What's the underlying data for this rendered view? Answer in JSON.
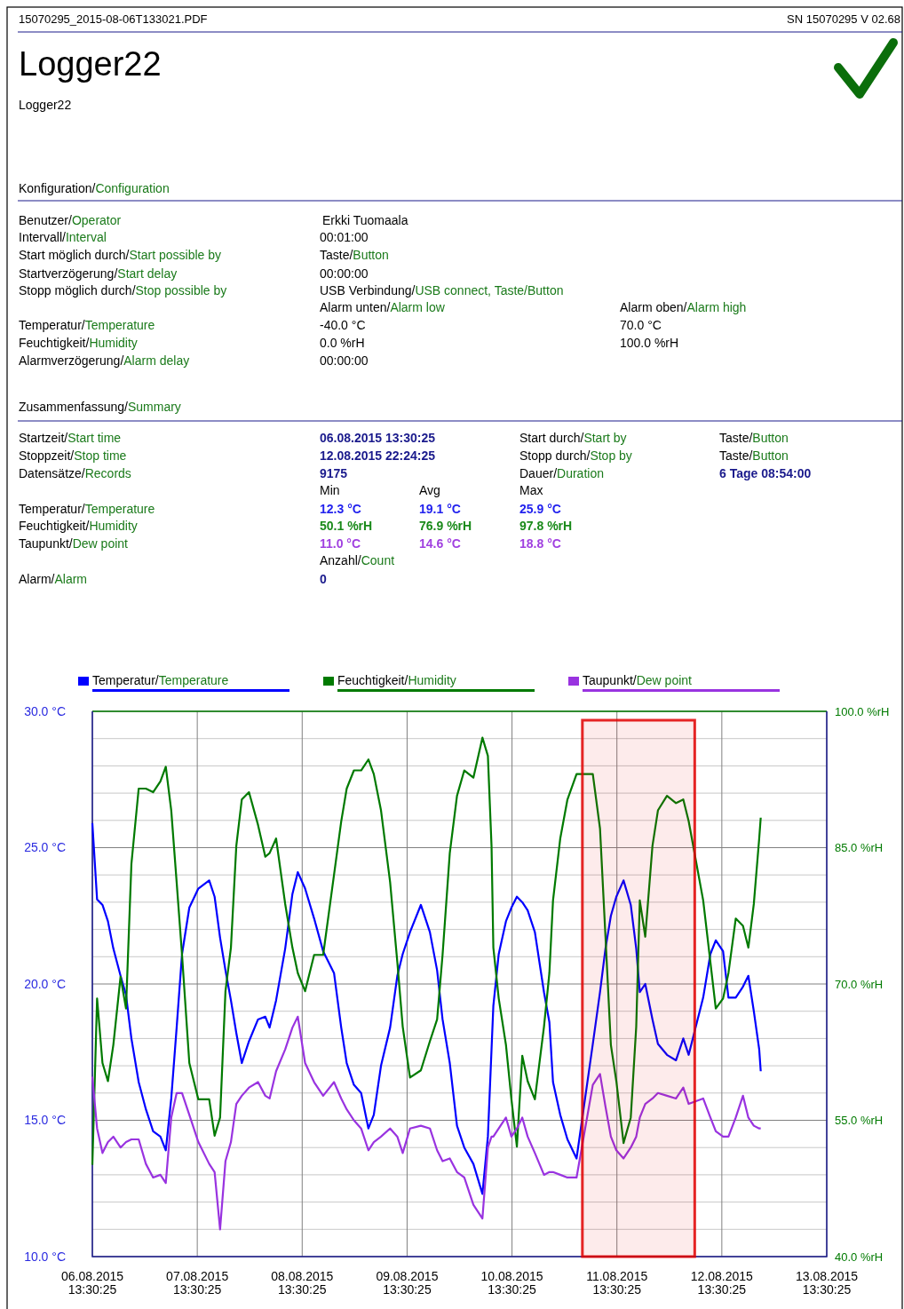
{
  "chart_data": [
    {
      "type": "other",
      "title": "Logger22",
      "subtitle": "Logger22",
      "annotations": [
        "15070295_2015-08-06T133021.PDF",
        "SN 15070295  V 02.68",
        "Konfiguration/Configuration",
        "Benutzer/Operator",
        "Erkki Tuomaala",
        "Intervall/Interval",
        "00:01:00",
        "Start möglich durch/Start possible by",
        "Taste/Button",
        "Startverzögerung/Start delay",
        "00:00:00",
        "Stopp möglich durch/Stop possible by",
        "USB Verbindung/USB connect,  Taste/Button",
        "Alarm unten/Alarm low",
        "Alarm oben/Alarm high",
        "Temperatur/Temperature",
        "-40.0 °C",
        "70.0 °C",
        "Feuchtigkeit/Humidity",
        "0.0 %rH",
        "100.0 %rH",
        "Alarmverzögerung/Alarm delay",
        "00:00:00",
        "Zusammenfassung/Summary",
        "Startzeit/Start time",
        "06.08.2015 13:30:25",
        "Start durch/Start by",
        "Taste/Button",
        "Stoppzeit/Stop time",
        "12.08.2015 22:24:25",
        "Stopp durch/Stop by",
        "Taste/Button",
        "Datensätze/Records",
        "9175",
        "Dauer/Duration",
        "6 Tage 08:54:00",
        "Min",
        "Avg",
        "Max",
        "Temperatur/Temperature",
        "12.3 °C",
        "19.1 °C",
        "25.9 °C",
        "Feuchtigkeit/Humidity",
        "50.1 %rH",
        "76.9 %rH",
        "97.8 %rH",
        "Taupunkt/Dew point",
        "11.0 °C",
        "14.6 °C",
        "18.8 °C",
        "Anzahl/Count",
        "Alarm/Alarm",
        "0"
      ]
    },
    {
      "type": "line",
      "legend": "top",
      "grid": true,
      "x": [
        "2015-08-06T13:30",
        "2015-08-06T14:35",
        "2015-08-06T15:49",
        "2015-08-06T17:04",
        "2015-08-06T18:18",
        "2015-08-06T19:57",
        "2015-08-06T21:12",
        "2015-08-06T22:26",
        "2015-08-07T00:06",
        "2015-08-07T01:45",
        "2015-08-07T03:24",
        "2015-08-07T05:04",
        "2015-08-07T06:18",
        "2015-08-07T07:33",
        "2015-08-07T08:47",
        "2015-08-07T10:01",
        "2015-08-07T11:41",
        "2015-08-07T13:45",
        "2015-08-07T16:14",
        "2015-08-07T17:28",
        "2015-08-07T18:43",
        "2015-08-07T19:57",
        "2015-08-07T21:12",
        "2015-08-07T22:26",
        "2015-08-07T23:41",
        "2015-08-08T01:20",
        "2015-08-08T03:24",
        "2015-08-08T05:04",
        "2015-08-08T06:03",
        "2015-08-08T07:32",
        "2015-08-08T09:37",
        "2015-08-08T11:16",
        "2015-08-08T12:30",
        "2015-08-08T14:10",
        "2015-08-08T16:14",
        "2015-08-08T18:18",
        "2015-08-08T20:47",
        "2015-08-08T22:26",
        "2015-08-08T23:41",
        "2015-08-09T01:20",
        "2015-08-09T02:59",
        "2015-08-09T04:39",
        "2015-08-09T05:53",
        "2015-08-09T07:32",
        "2015-08-09T09:37",
        "2015-08-09T11:16",
        "2015-08-09T12:30",
        "2015-08-09T14:10",
        "2015-08-09T16:39",
        "2015-08-09T18:43",
        "2015-08-09T20:22",
        "2015-08-09T21:37",
        "2015-08-09T23:16",
        "2015-08-10T00:55",
        "2015-08-10T02:35",
        "2015-08-10T04:40",
        "2015-08-10T06:44",
        "2015-08-10T07:59",
        "2015-08-10T08:49",
        "2015-08-10T09:14",
        "2015-08-10T10:28",
        "2015-08-10T12:07",
        "2015-08-10T13:22",
        "2015-08-10T14:37",
        "2015-08-10T15:51",
        "2015-08-10T17:05",
        "2015-08-10T18:44",
        "2015-08-10T20:49",
        "2015-08-10T22:03",
        "2015-08-10T22:53",
        "2015-08-11T00:32",
        "2015-08-11T02:11",
        "2015-08-11T04:16",
        "2015-08-11T07:59",
        "2015-08-11T09:38",
        "2015-08-11T10:53",
        "2015-08-11T12:07",
        "2015-08-11T13:22",
        "2015-08-11T15:01",
        "2015-08-11T16:40",
        "2015-08-11T17:55",
        "2015-08-11T18:44",
        "2015-08-11T19:59",
        "2015-08-11T21:38",
        "2015-08-11T22:53",
        "2015-08-12T00:57",
        "2015-08-12T03:01",
        "2015-08-12T04:41",
        "2015-08-12T05:55",
        "2015-08-12T09:14",
        "2015-08-12T10:53",
        "2015-08-12T12:07",
        "2015-08-12T13:47",
        "2015-08-12T15:01",
        "2015-08-12T16:41",
        "2015-08-12T18:20",
        "2015-08-12T19:34",
        "2015-08-12T20:49",
        "2015-08-12T22:03",
        "2015-08-12T22:24"
      ],
      "xlim": [
        "2015-08-06T13:30",
        "2015-08-13T13:30"
      ],
      "xticks": [
        {
          "value": "2015-08-06T13:30",
          "label": "06.08.2015 13:30:25"
        },
        {
          "value": "2015-08-07T13:30",
          "label": "07.08.2015 13:30:25"
        },
        {
          "value": "2015-08-08T13:30",
          "label": "08.08.2015 13:30:25"
        },
        {
          "value": "2015-08-09T13:30",
          "label": "09.08.2015 13:30:25"
        },
        {
          "value": "2015-08-10T13:30",
          "label": "10.08.2015 13:30:25"
        },
        {
          "value": "2015-08-11T13:30",
          "label": "11.08.2015 13:30:25"
        },
        {
          "value": "2015-08-12T13:30",
          "label": "12.08.2015 13:30:25"
        },
        {
          "value": "2015-08-13T13:30",
          "label": "13.08.2015 13:30:25"
        }
      ],
      "ylim": [
        10,
        30
      ],
      "yticks": [
        {
          "value": 10,
          "label": "10.0 °C"
        },
        {
          "value": 11,
          "label": null
        },
        {
          "value": 12,
          "label": null
        },
        {
          "value": 13,
          "label": null
        },
        {
          "value": 14,
          "label": null
        },
        {
          "value": 15,
          "label": "15.0 °C"
        },
        {
          "value": 16,
          "label": null
        },
        {
          "value": 17,
          "label": null
        },
        {
          "value": 18,
          "label": null
        },
        {
          "value": 19,
          "label": null
        },
        {
          "value": 20,
          "label": "20.0 °C"
        },
        {
          "value": 21,
          "label": null
        },
        {
          "value": 22,
          "label": null
        },
        {
          "value": 23,
          "label": null
        },
        {
          "value": 24,
          "label": null
        },
        {
          "value": 25,
          "label": "25.0 °C"
        },
        {
          "value": 26,
          "label": null
        },
        {
          "value": 27,
          "label": null
        },
        {
          "value": 28,
          "label": null
        },
        {
          "value": 29,
          "label": null
        },
        {
          "value": 30,
          "label": "30.0 °C"
        }
      ],
      "y2lim": [
        40,
        100
      ],
      "y2ticks": [
        {
          "value": 40,
          "label": "40.0 %rH"
        },
        {
          "value": 55,
          "label": "55.0 %rH"
        },
        {
          "value": 70,
          "label": "70.0 %rH"
        },
        {
          "value": 85,
          "label": "85.0 %rH"
        },
        {
          "value": 100,
          "label": "100.0 %rH"
        }
      ],
      "bands": [
        {
          "axis": "x",
          "from": "2015-08-11T05:36",
          "to": "2015-08-12T07:18",
          "color": "#e00000"
        }
      ],
      "series": [
        {
          "name": "Temperatur/Temperature",
          "color": "#0000ff",
          "values": [
            25.9,
            23.1,
            22.9,
            22.3,
            21.3,
            20.3,
            19.6,
            18.0,
            16.4,
            15.4,
            14.6,
            14.4,
            13.9,
            15.8,
            18.4,
            21.1,
            22.8,
            23.5,
            23.8,
            23.2,
            21.7,
            20.5,
            19.4,
            18.2,
            17.1,
            17.9,
            18.7,
            18.8,
            18.4,
            19.4,
            21.3,
            23.3,
            24.1,
            23.5,
            22.4,
            21.2,
            20.4,
            18.4,
            17.1,
            16.3,
            16.0,
            14.7,
            15.2,
            17.0,
            18.4,
            20.3,
            21.1,
            21.9,
            22.9,
            21.9,
            20.5,
            18.7,
            17.1,
            14.8,
            14.0,
            13.4,
            12.3,
            14.4,
            17.6,
            19.2,
            21.1,
            22.3,
            22.8,
            23.2,
            23.0,
            22.7,
            21.9,
            19.7,
            18.6,
            16.4,
            15.2,
            14.3,
            13.6,
            17.8,
            19.7,
            21.3,
            22.5,
            23.2,
            23.8,
            22.9,
            21.3,
            19.7,
            20.0,
            18.7,
            17.8,
            17.4,
            17.2,
            18.0,
            17.4,
            19.5,
            21.1,
            21.6,
            21.2,
            19.5,
            19.5,
            19.9,
            20.3,
            19.0,
            17.6,
            16.8
          ]
        },
        {
          "name": "Feuchtigkeit/Humidity",
          "color": "#007a00",
          "axis": "y2",
          "values": [
            50.1,
            68.4,
            61.3,
            59.3,
            63.3,
            70.8,
            67.3,
            83.2,
            91.5,
            91.5,
            91.1,
            92.3,
            93.9,
            89.1,
            81.2,
            73.2,
            61.3,
            57.3,
            57.3,
            53.3,
            55.3,
            69.2,
            74.0,
            85.2,
            90.3,
            91.1,
            87.5,
            84.0,
            84.4,
            86.0,
            78.8,
            74.0,
            71.2,
            69.2,
            73.2,
            73.2,
            82.0,
            87.9,
            91.5,
            93.5,
            93.5,
            94.7,
            93.1,
            89.1,
            81.2,
            72.4,
            65.3,
            59.7,
            60.5,
            63.7,
            66.1,
            73.2,
            84.4,
            90.7,
            93.5,
            92.7,
            97.1,
            95.1,
            85.2,
            74.0,
            68.4,
            63.3,
            57.3,
            52.1,
            62.1,
            59.3,
            57.3,
            65.3,
            71.2,
            79.2,
            86.0,
            90.3,
            93.1,
            93.1,
            87.1,
            75.2,
            63.3,
            59.3,
            52.5,
            55.3,
            65.3,
            79.2,
            75.2,
            85.2,
            89.1,
            90.7,
            89.9,
            90.3,
            87.9,
            79.2,
            72.4,
            67.3,
            68.4,
            71.2,
            77.2,
            76.4,
            74.0,
            78.8,
            86.0,
            88.3
          ]
        },
        {
          "name": "Taupunkt/Dew point",
          "color": "#9933e0",
          "values": [
            16.6,
            14.7,
            13.8,
            14.2,
            14.4,
            14.0,
            14.2,
            14.3,
            14.3,
            13.4,
            12.9,
            13.0,
            12.7,
            15.1,
            16.0,
            16.0,
            15.2,
            14.2,
            13.4,
            13.1,
            11.0,
            13.5,
            14.2,
            15.6,
            15.9,
            16.2,
            16.4,
            15.9,
            15.8,
            16.8,
            17.6,
            18.4,
            18.8,
            17.1,
            16.4,
            15.9,
            16.4,
            15.8,
            15.4,
            15.0,
            14.7,
            13.9,
            14.2,
            14.4,
            14.7,
            14.4,
            13.8,
            14.7,
            14.8,
            14.7,
            13.9,
            13.5,
            13.6,
            13.1,
            12.9,
            11.9,
            11.4,
            14.0,
            14.4,
            14.4,
            14.7,
            15.1,
            14.4,
            14.7,
            15.1,
            14.4,
            13.8,
            13.0,
            13.1,
            13.1,
            13.0,
            12.9,
            12.9,
            16.3,
            16.7,
            15.5,
            14.4,
            13.9,
            13.6,
            14.0,
            14.4,
            15.1,
            15.6,
            15.8,
            16.0,
            15.9,
            15.8,
            16.2,
            15.6,
            15.8,
            15.1,
            14.6,
            14.4,
            14.4,
            15.1,
            15.9,
            15.1,
            14.8,
            14.7,
            14.7
          ]
        }
      ]
    }
  ]
}
